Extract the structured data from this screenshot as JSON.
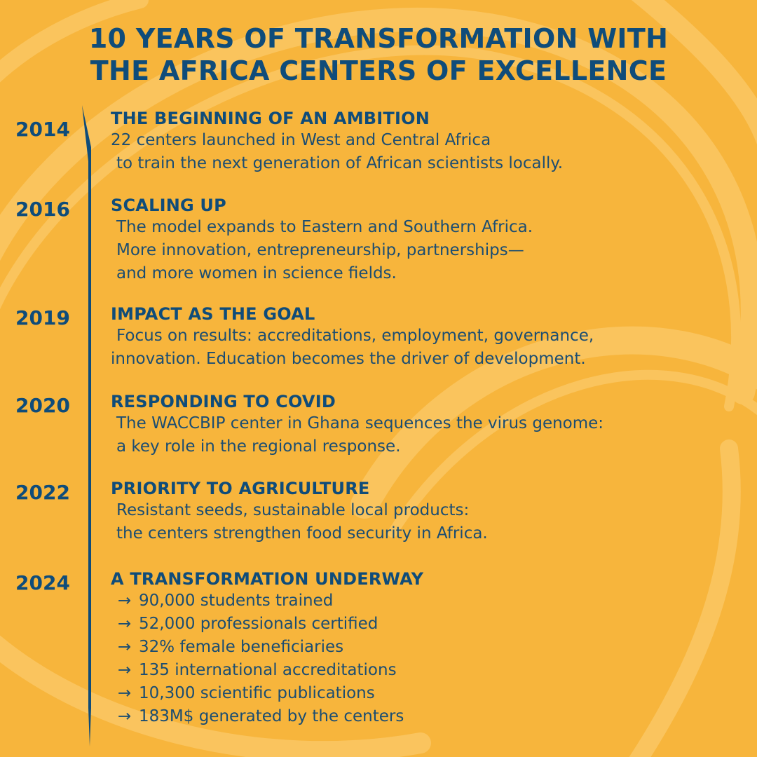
{
  "title": {
    "line1": "10 YEARS OF TRANSFORMATION WITH",
    "line2": "THE AFRICA CENTERS OF EXCELLENCE"
  },
  "accent_color": "#0f4c7a",
  "background_color": "#f7b53c",
  "timeline": [
    {
      "year": "2014",
      "heading": "THE BEGINNING OF AN AMBITION",
      "lines": [
        "22 centers launched in West and Central Africa",
        "to train the next generation of African scientists locally."
      ]
    },
    {
      "year": "2016",
      "heading": "SCALING UP",
      "lines": [
        "The model expands to Eastern and Southern Africa.",
        "More innovation, entrepreneurship, partnerships—",
        "and more women in science fields."
      ]
    },
    {
      "year": "2019",
      "heading": "IMPACT AS THE GOAL",
      "lines": [
        "Focus on results: accreditations, employment, governance,",
        "innovation. Education becomes the driver of development."
      ]
    },
    {
      "year": "2020",
      "heading": "RESPONDING TO COVID",
      "lines": [
        "The WACCBIP center in Ghana sequences the virus genome:",
        "a key role in the regional response."
      ]
    },
    {
      "year": "2022",
      "heading": "PRIORITY TO AGRICULTURE",
      "lines": [
        "Resistant seeds, sustainable local products:",
        "the centers strengthen food security in Africa."
      ]
    },
    {
      "year": "2024",
      "heading": "A TRANSFORMATION UNDERWAY",
      "bullet_symbol": "→",
      "bullets": [
        "90,000 students trained",
        "52,000 professionals certified",
        "32% female beneficiaries",
        "135 international accreditations",
        "10,300 scientific publications",
        "183M$ generated by the centers"
      ]
    }
  ]
}
